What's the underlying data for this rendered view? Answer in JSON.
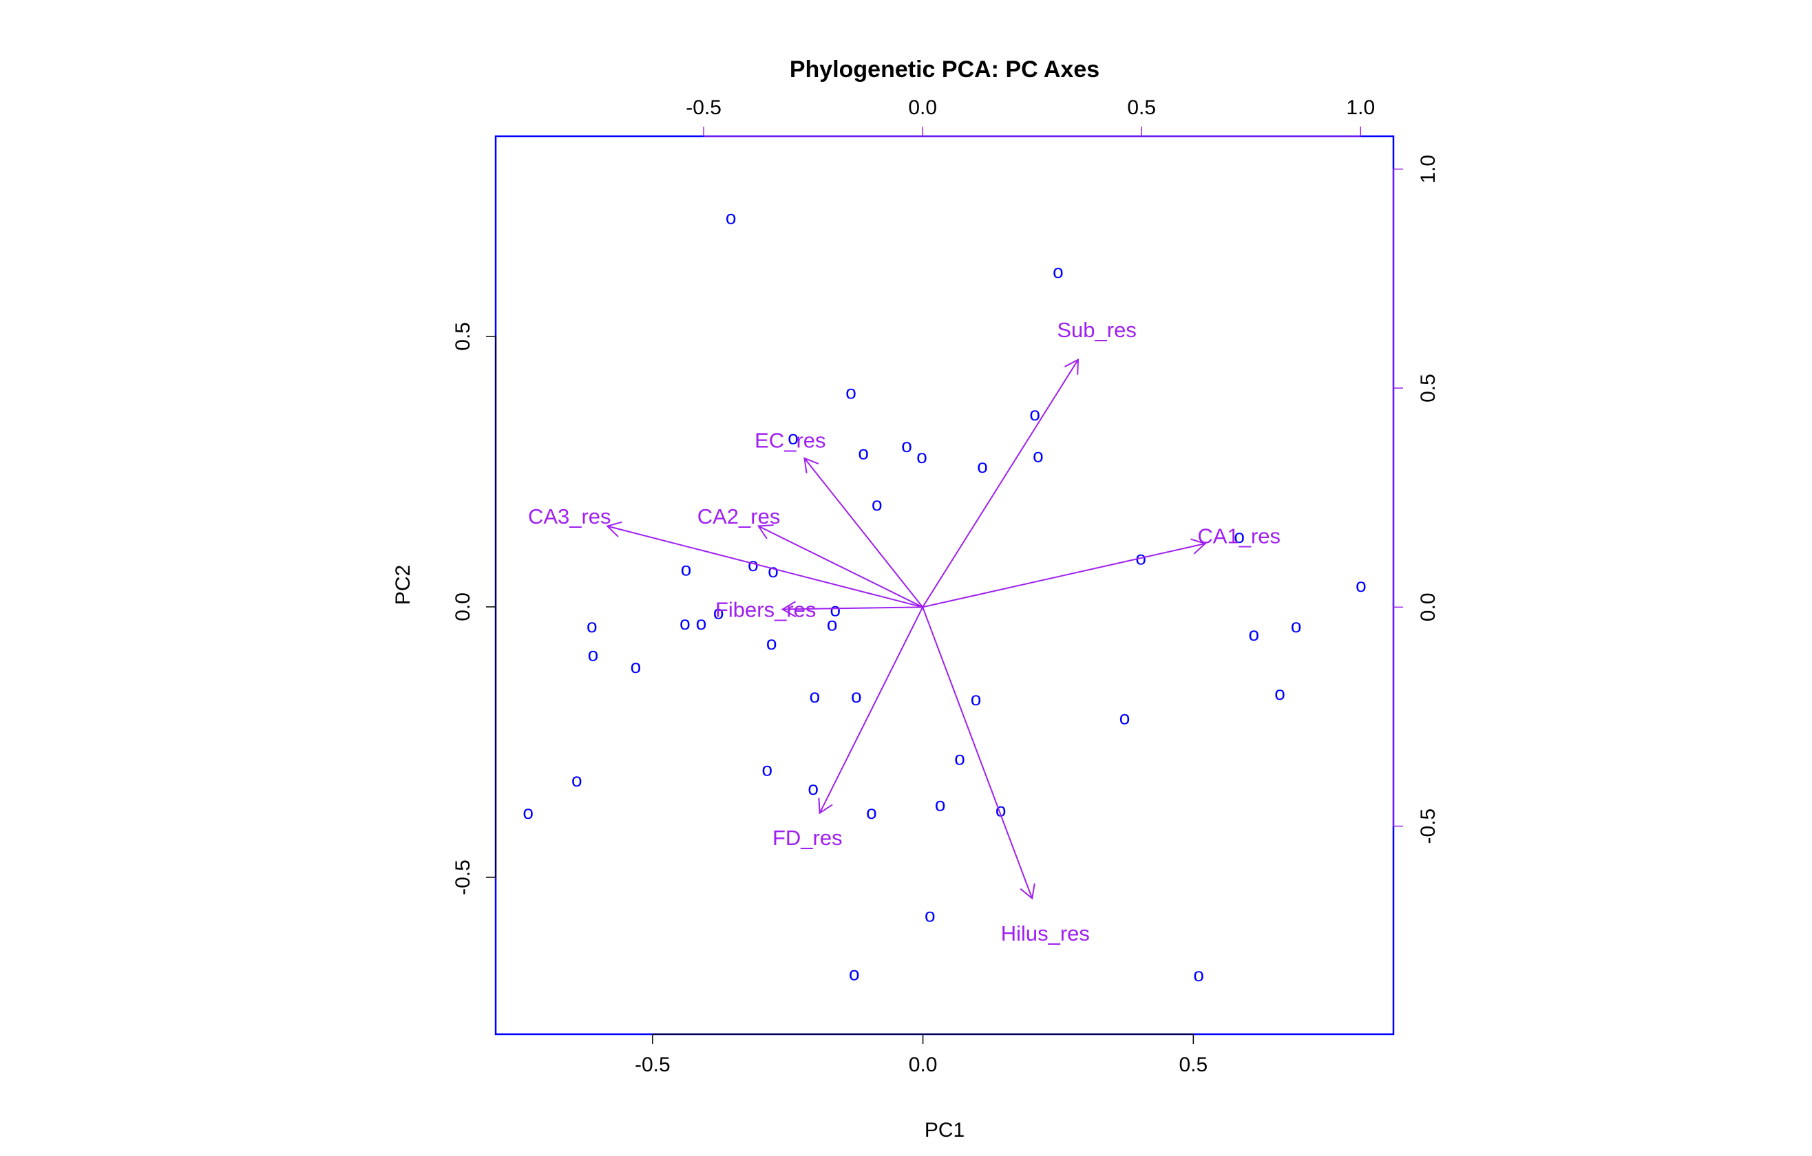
{
  "chart_data": {
    "type": "scatter",
    "subtype": "biplot",
    "title": "Phylogenetic PCA: PC Axes",
    "xlabel": "PC1",
    "ylabel": "PC2",
    "xlim": [
      -0.79,
      0.87
    ],
    "ylim": [
      -0.79,
      0.87
    ],
    "xticks": [
      -0.5,
      0.0,
      0.5
    ],
    "yticks": [
      -0.5,
      0.0,
      0.5
    ],
    "xtick_labels": [
      "-0.5",
      "0.0",
      "0.5"
    ],
    "ytick_labels": [
      "-0.5",
      "0.0",
      "0.5"
    ],
    "top_xlim": [
      -0.975,
      1.075
    ],
    "right_ylim": [
      -0.975,
      1.075
    ],
    "top_xticks": [
      -0.5,
      0.0,
      0.5,
      1.0
    ],
    "right_yticks": [
      -0.5,
      0.0,
      0.5,
      1.0
    ],
    "top_xtick_labels": [
      "-0.5",
      "0.0",
      "0.5",
      "1.0"
    ],
    "right_ytick_labels": [
      "-0.5",
      "0.0",
      "0.5",
      "1.0"
    ],
    "grid": false,
    "colors": {
      "points": "#0000ff",
      "frame": "#0000ff",
      "loadings": "#a020f0",
      "text": "#000000"
    },
    "point_marker": "o",
    "points": [
      {
        "x": -0.355,
        "y": 0.72
      },
      {
        "x": 0.25,
        "y": 0.62
      },
      {
        "x": -0.133,
        "y": 0.397
      },
      {
        "x": 0.207,
        "y": 0.357
      },
      {
        "x": -0.24,
        "y": 0.313
      },
      {
        "x": -0.03,
        "y": 0.298
      },
      {
        "x": -0.11,
        "y": 0.285
      },
      {
        "x": -0.002,
        "y": 0.278
      },
      {
        "x": 0.213,
        "y": 0.28
      },
      {
        "x": 0.11,
        "y": 0.26
      },
      {
        "x": -0.085,
        "y": 0.19
      },
      {
        "x": 0.585,
        "y": 0.13
      },
      {
        "x": 0.403,
        "y": 0.09
      },
      {
        "x": -0.314,
        "y": 0.078
      },
      {
        "x": -0.277,
        "y": 0.067
      },
      {
        "x": -0.438,
        "y": 0.07
      },
      {
        "x": 0.81,
        "y": 0.04
      },
      {
        "x": -0.378,
        "y": -0.01
      },
      {
        "x": -0.162,
        "y": -0.005
      },
      {
        "x": -0.44,
        "y": -0.03
      },
      {
        "x": -0.41,
        "y": -0.03
      },
      {
        "x": -0.168,
        "y": -0.032
      },
      {
        "x": -0.612,
        "y": -0.035
      },
      {
        "x": 0.69,
        "y": -0.035
      },
      {
        "x": 0.612,
        "y": -0.05
      },
      {
        "x": -0.28,
        "y": -0.067
      },
      {
        "x": -0.61,
        "y": -0.088
      },
      {
        "x": -0.531,
        "y": -0.11
      },
      {
        "x": 0.66,
        "y": -0.16
      },
      {
        "x": -0.2,
        "y": -0.165
      },
      {
        "x": -0.123,
        "y": -0.165
      },
      {
        "x": 0.098,
        "y": -0.17
      },
      {
        "x": 0.373,
        "y": -0.205
      },
      {
        "x": 0.068,
        "y": -0.28
      },
      {
        "x": -0.288,
        "y": -0.3
      },
      {
        "x": -0.64,
        "y": -0.32
      },
      {
        "x": -0.203,
        "y": -0.335
      },
      {
        "x": 0.032,
        "y": -0.365
      },
      {
        "x": 0.144,
        "y": -0.375
      },
      {
        "x": -0.095,
        "y": -0.38
      },
      {
        "x": -0.73,
        "y": -0.38
      },
      {
        "x": 0.013,
        "y": -0.57
      },
      {
        "x": 0.51,
        "y": -0.68
      },
      {
        "x": -0.127,
        "y": -0.678
      }
    ],
    "loadings": [
      {
        "name": "CA1_res",
        "x": 0.645,
        "y": 0.145
      },
      {
        "name": "CA2_res",
        "x": -0.375,
        "y": 0.185
      },
      {
        "name": "CA3_res",
        "x": -0.72,
        "y": 0.185
      },
      {
        "name": "EC_res",
        "x": -0.27,
        "y": 0.34
      },
      {
        "name": "Sub_res",
        "x": 0.355,
        "y": 0.565
      },
      {
        "name": "Fibers_res",
        "x": -0.32,
        "y": -0.005
      },
      {
        "name": "FD_res",
        "x": -0.235,
        "y": -0.47
      },
      {
        "name": "Hilus_res",
        "x": 0.25,
        "y": -0.665
      }
    ]
  }
}
